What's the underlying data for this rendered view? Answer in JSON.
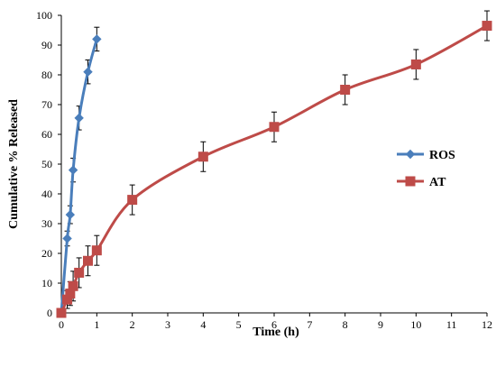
{
  "chart_data": {
    "type": "line",
    "xlabel": "Time (h)",
    "ylabel": "Cumulative % Released",
    "xlim": [
      0,
      12
    ],
    "ylim": [
      0,
      100
    ],
    "xticks": [
      0,
      1,
      2,
      3,
      4,
      5,
      6,
      7,
      8,
      9,
      10,
      11,
      12
    ],
    "yticks": [
      0,
      10,
      20,
      30,
      40,
      50,
      60,
      70,
      80,
      90,
      100
    ],
    "grid": false,
    "legend_position": "right",
    "series": [
      {
        "name": "ROS",
        "color": "#4a7ebb",
        "marker": "diamond",
        "x": [
          0,
          0.167,
          0.25,
          0.333,
          0.5,
          0.75,
          1.0
        ],
        "y": [
          0,
          25,
          33,
          48,
          65.5,
          81,
          92
        ],
        "error": [
          0,
          2.5,
          3,
          4,
          4,
          4,
          4
        ]
      },
      {
        "name": "AT",
        "color": "#be4b48",
        "marker": "square",
        "x": [
          0,
          0.167,
          0.25,
          0.333,
          0.5,
          0.75,
          1,
          2,
          4,
          6,
          8,
          10,
          12
        ],
        "y": [
          0,
          4.5,
          6.5,
          9,
          13.5,
          17.5,
          21,
          38,
          52.5,
          62.5,
          75,
          83.5,
          96.5
        ],
        "error": [
          0,
          3,
          4,
          5,
          5,
          5,
          5,
          5,
          5,
          5,
          5,
          5,
          5
        ]
      }
    ]
  }
}
